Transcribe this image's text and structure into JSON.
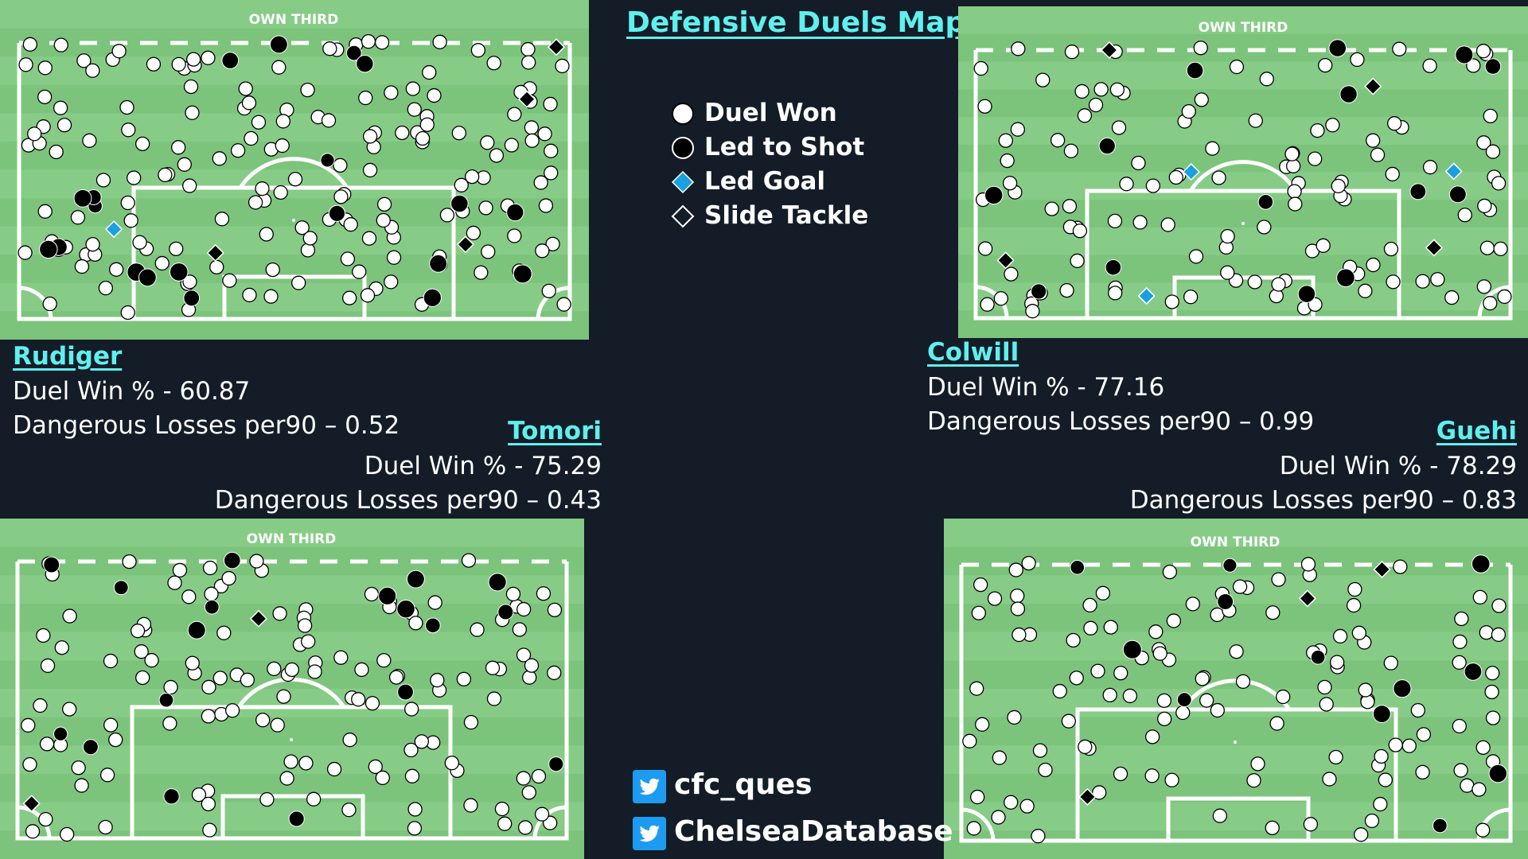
{
  "title": "Defensive Duels Map",
  "legend": [
    {
      "label": "Duel Won",
      "symbol": "white-circle"
    },
    {
      "label": "Led to Shot",
      "symbol": "black-circle"
    },
    {
      "label": "Led Goal",
      "symbol": "blue-diamond"
    },
    {
      "label": "Slide Tackle",
      "symbol": "white-diamond"
    }
  ],
  "colors": {
    "pitch": "#7cc47c",
    "background": "#141c28",
    "accent": "#5ff0ee",
    "goal_diamond": "#1aa0e0"
  },
  "own_third_label": "OWN THIRD",
  "players": [
    {
      "name": "Rudiger",
      "duel_win": "Duel Win % - 60.87",
      "dangerous_losses": "Dangerous Losses per90 – 0.52"
    },
    {
      "name": "Tomori",
      "duel_win": "Duel Win % - 75.29",
      "dangerous_losses": "Dangerous Losses per90 – 0.43"
    },
    {
      "name": "Colwill",
      "duel_win": "Duel Win % - 77.16",
      "dangerous_losses": "Dangerous Losses per90 – 0.99"
    },
    {
      "name": "Guehi",
      "duel_win": "Duel Win % - 78.29",
      "dangerous_losses": "Dangerous Losses per90 – 0.83"
    }
  ],
  "social": [
    {
      "icon": "twitter-icon",
      "handle": "cfc_ques"
    },
    {
      "icon": "twitter-icon",
      "handle": "ChelseaDatabase"
    }
  ]
}
